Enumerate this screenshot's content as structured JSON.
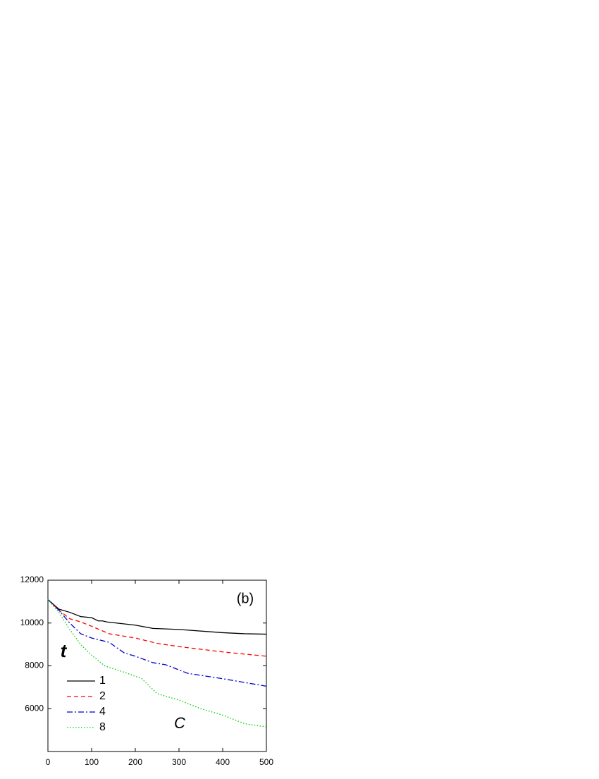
{
  "chart_data": {
    "type": "line",
    "annotation": "(b)",
    "x_label": "C",
    "y_label": "t",
    "xlim": [
      0,
      500
    ],
    "xticks": [
      0,
      100,
      200,
      300,
      400,
      500
    ],
    "ylim": [
      4000,
      12000
    ],
    "yticks": [
      6000,
      8000,
      10000,
      12000
    ],
    "legend": "lower left",
    "series": [
      {
        "name": "1",
        "color": "#000000",
        "dash": "solid",
        "x": [
          0,
          25,
          50,
          75,
          100,
          115,
          125,
          135,
          200,
          240,
          300,
          400,
          450,
          500
        ],
        "values": [
          11100,
          10650,
          10500,
          10300,
          10250,
          10100,
          10100,
          10050,
          9900,
          9750,
          9700,
          9550,
          9500,
          9480
        ]
      },
      {
        "name": "2",
        "color": "#ff0000",
        "dash": "dashed",
        "x": [
          0,
          25,
          50,
          75,
          100,
          140,
          200,
          250,
          300,
          400,
          500
        ],
        "values": [
          11100,
          10600,
          10200,
          10050,
          9850,
          9500,
          9300,
          9050,
          8900,
          8650,
          8450
        ]
      },
      {
        "name": "4",
        "color": "#0000cc",
        "dash": "dashdot",
        "x": [
          0,
          25,
          50,
          75,
          100,
          140,
          175,
          200,
          240,
          270,
          320,
          400,
          500
        ],
        "values": [
          11100,
          10600,
          10000,
          9500,
          9300,
          9100,
          8600,
          8450,
          8150,
          8050,
          7650,
          7400,
          7050
        ]
      },
      {
        "name": "8",
        "color": "#00cc00",
        "dash": "dotted",
        "x": [
          0,
          25,
          50,
          75,
          100,
          130,
          175,
          215,
          250,
          300,
          350,
          400,
          450,
          500
        ],
        "values": [
          11100,
          10500,
          9700,
          9000,
          8500,
          8000,
          7700,
          7400,
          6700,
          6400,
          6000,
          5700,
          5300,
          5150
        ]
      }
    ]
  }
}
